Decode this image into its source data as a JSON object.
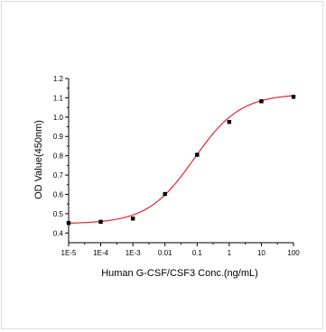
{
  "chart_data": {
    "type": "scatter",
    "title": "",
    "xlabel": "Human G-CSF/CSF3 Conc.(ng/mL)",
    "ylabel": "OD Value(450nm)",
    "x_scale": "log",
    "xlim": [
      1e-05,
      100
    ],
    "ylim": [
      0.35,
      1.2
    ],
    "x_tick_values": [
      1e-05,
      0.0001,
      0.001,
      0.01,
      0.1,
      1,
      10,
      100
    ],
    "x_tick_labels": [
      "1E-5",
      "1E-4",
      "1E-3",
      "0.01",
      "0.1",
      "1",
      "10",
      "100"
    ],
    "y_tick_values": [
      0.4,
      0.5,
      0.6,
      0.7,
      0.8,
      0.9,
      1.0,
      1.1,
      1.2
    ],
    "y_tick_labels": [
      "0.4",
      "0.5",
      "0.6",
      "0.7",
      "0.8",
      "0.9",
      "1.0",
      "1.1",
      "1.2"
    ],
    "grid": false,
    "series": [
      {
        "x": [
          1e-05,
          0.0001,
          0.001,
          0.01,
          0.1,
          1,
          10,
          100
        ],
        "y": [
          0.452,
          0.458,
          0.475,
          0.602,
          0.805,
          0.975,
          1.082,
          1.105
        ],
        "color": "#000000"
      }
    ],
    "fit_curve": {
      "type": "4PL",
      "bottom": 0.448,
      "top": 1.12,
      "ec50": 0.08,
      "hill": 0.6,
      "color": "#e8242c"
    }
  }
}
